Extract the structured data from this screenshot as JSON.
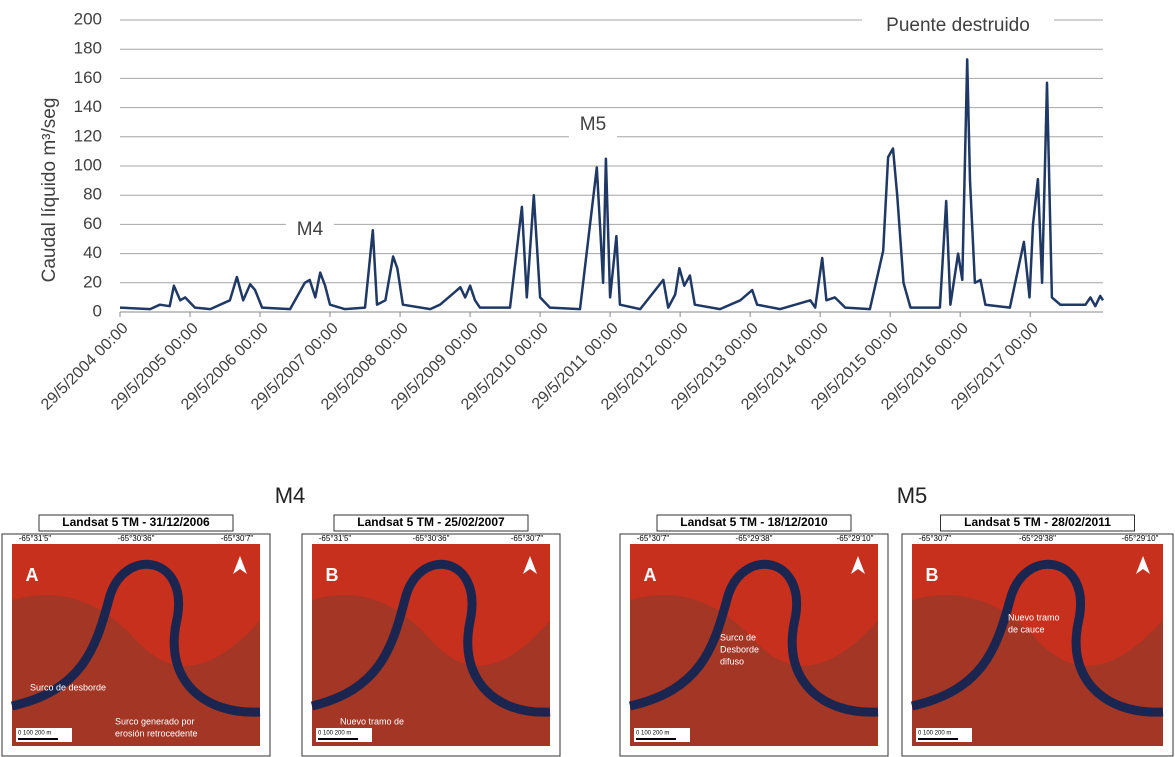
{
  "chart_data": {
    "type": "line",
    "ylabel": "Caudal líquido m³/seg",
    "annotations": [
      "M4",
      "M5",
      "Puente destruido"
    ],
    "xlim": [
      2004.41,
      2018.45
    ],
    "xticks": [
      {
        "value": 2004.41,
        "label": "29/5/2004 00:00"
      },
      {
        "value": 2005.41,
        "label": "29/5/2005 00:00"
      },
      {
        "value": 2006.41,
        "label": "29/5/2006 00:00"
      },
      {
        "value": 2007.41,
        "label": "29/5/2007 00:00"
      },
      {
        "value": 2008.41,
        "label": "29/5/2008 00:00"
      },
      {
        "value": 2009.41,
        "label": "29/5/2009 00:00"
      },
      {
        "value": 2010.41,
        "label": "29/5/2010 00:00"
      },
      {
        "value": 2011.41,
        "label": "29/5/2011 00:00"
      },
      {
        "value": 2012.41,
        "label": "29/5/2012 00:00"
      },
      {
        "value": 2013.41,
        "label": "29/5/2013 00:00"
      },
      {
        "value": 2014.41,
        "label": "29/5/2014 00:00"
      },
      {
        "value": 2015.41,
        "label": "29/5/2015 00:00"
      },
      {
        "value": 2016.41,
        "label": "29/5/2016 00:00"
      },
      {
        "value": 2017.41,
        "label": "29/5/2017 00:00"
      }
    ],
    "ylim": [
      0,
      200
    ],
    "yticks": [
      0,
      20,
      40,
      60,
      80,
      100,
      120,
      140,
      160,
      180,
      200
    ],
    "grid": true,
    "color": "#1f3864",
    "x": [
      2004.41,
      2004.84,
      2004.98,
      2005.12,
      2005.18,
      2005.27,
      2005.34,
      2005.48,
      2005.7,
      2005.98,
      2006.08,
      2006.17,
      2006.27,
      2006.34,
      2006.44,
      2006.84,
      2007.05,
      2007.12,
      2007.2,
      2007.27,
      2007.34,
      2007.41,
      2007.62,
      2007.91,
      2008.02,
      2008.08,
      2008.2,
      2008.31,
      2008.37,
      2008.45,
      2008.84,
      2008.98,
      2009.2,
      2009.27,
      2009.34,
      2009.41,
      2009.48,
      2009.55,
      2009.98,
      2010.15,
      2010.22,
      2010.32,
      2010.41,
      2010.55,
      2010.98,
      2011.22,
      2011.27,
      2011.31,
      2011.35,
      2011.41,
      2011.5,
      2011.55,
      2011.84,
      2012.17,
      2012.24,
      2012.34,
      2012.4,
      2012.47,
      2012.55,
      2012.62,
      2012.98,
      2013.27,
      2013.44,
      2013.51,
      2013.84,
      2014.27,
      2014.34,
      2014.44,
      2014.5,
      2014.62,
      2014.77,
      2015.12,
      2015.31,
      2015.38,
      2015.45,
      2015.51,
      2015.6,
      2015.7,
      2016.12,
      2016.21,
      2016.27,
      2016.38,
      2016.44,
      2016.51,
      2016.55,
      2016.62,
      2016.7,
      2016.77,
      2017.12,
      2017.32,
      2017.4,
      2017.45,
      2017.52,
      2017.58,
      2017.65,
      2017.72,
      2017.84,
      2018.2,
      2018.27,
      2018.34,
      2018.41,
      2018.45
    ],
    "values": [
      3,
      2,
      5,
      4,
      18,
      8,
      10,
      3,
      2,
      8,
      24,
      8,
      19,
      15,
      3,
      2,
      20,
      22,
      10,
      27,
      18,
      5,
      2,
      3,
      56,
      5,
      8,
      38,
      30,
      5,
      2,
      5,
      14,
      17,
      10,
      18,
      8,
      3,
      3,
      72,
      10,
      80,
      10,
      3,
      2,
      99,
      56,
      20,
      105,
      10,
      52,
      5,
      2,
      22,
      3,
      12,
      30,
      18,
      25,
      5,
      2,
      8,
      15,
      5,
      2,
      8,
      3,
      37,
      8,
      10,
      3,
      2,
      42,
      106,
      112,
      80,
      20,
      3,
      3,
      76,
      5,
      40,
      22,
      173,
      90,
      20,
      22,
      5,
      3,
      48,
      10,
      60,
      91,
      20,
      157,
      10,
      5,
      5,
      10,
      4,
      11,
      8
    ]
  },
  "groups": [
    "M4",
    "M5"
  ],
  "panels": [
    {
      "title": "Landsat 5 TM - 31/12/2006",
      "letter": "A",
      "coords": [
        "-65°31'5\"",
        "-65°30'36\"",
        "-65°30'7\""
      ],
      "notes": [
        "Surco de desborde",
        "Surco generado por",
        "erosión retrocedente"
      ],
      "scale": "0 100 200 m"
    },
    {
      "title": "Landsat 5 TM - 25/02/2007",
      "letter": "B",
      "coords": [
        "-65°31'5\"",
        "-65°30'36\"",
        "-65°30'7\""
      ],
      "notes": [
        "Nuevo tramo de",
        "cauce"
      ],
      "scale": "0 100 200 m"
    },
    {
      "title": "Landsat 5 TM - 18/12/2010",
      "letter": "A",
      "coords": [
        "-65°30'7\"",
        "-65°29'38\"",
        "-65°29'10\""
      ],
      "notes": [
        "Surco de",
        "Desborde",
        "difuso"
      ],
      "scale": "0 100 200 m"
    },
    {
      "title": "Landsat 5 TM - 28/02/2011",
      "letter": "B",
      "coords": [
        "-65°30'7\"",
        "-65°29'38\"",
        "-65°29'10\""
      ],
      "notes": [
        "Nuevo tramo",
        "de cauce"
      ],
      "scale": "0 100 200 m"
    }
  ]
}
